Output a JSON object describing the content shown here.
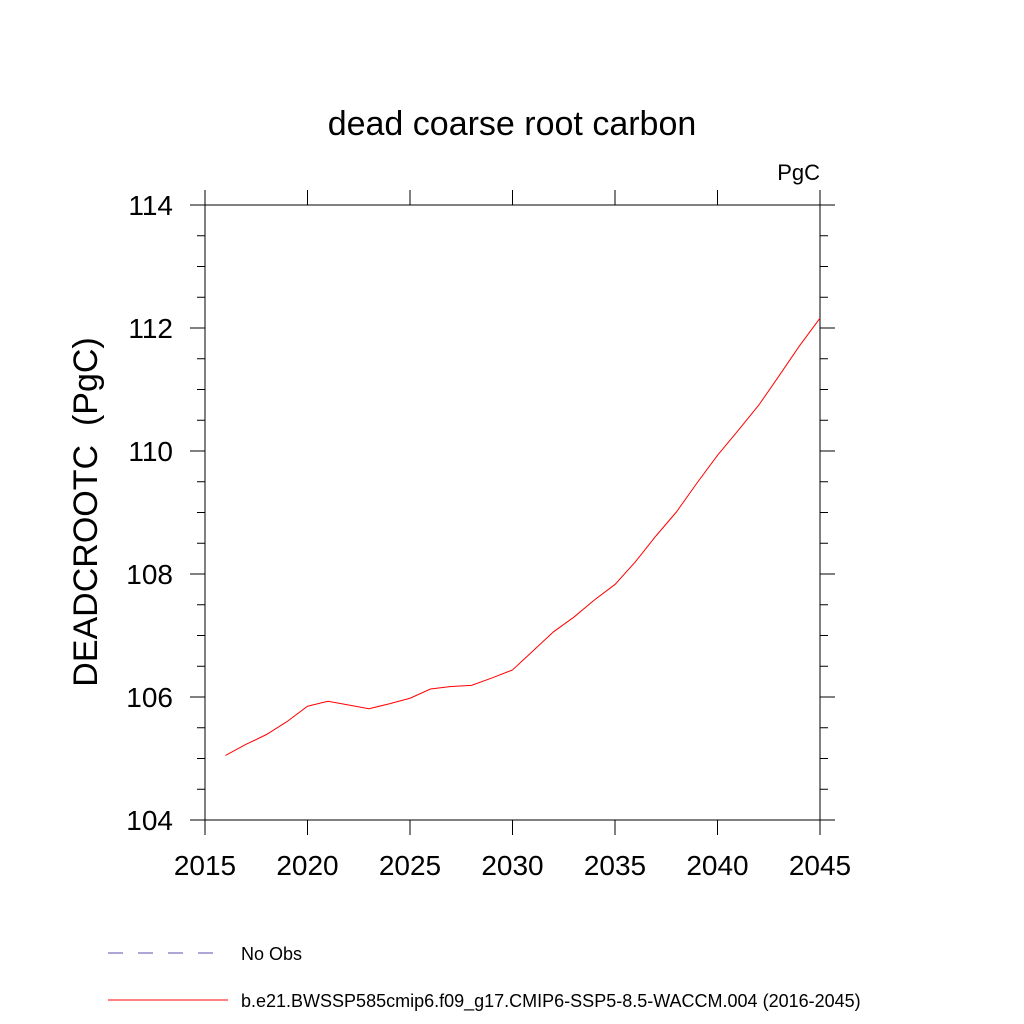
{
  "chart_data": {
    "type": "line",
    "title": "dead coarse root carbon",
    "units_label": "PgC",
    "xlabel": "",
    "ylabel": "DEADCROOTC  (PgC)",
    "xlim": [
      2015,
      2045
    ],
    "ylim": [
      104,
      114
    ],
    "xticks": [
      2015,
      2020,
      2025,
      2030,
      2035,
      2040,
      2045
    ],
    "yticks": [
      104,
      106,
      108,
      110,
      112,
      114
    ],
    "series": [
      {
        "name": "b.e21.BWSSP585cmip6.f09_g17.CMIP6-SSP5-8.5-WACCM.004 (2016-2045)",
        "color": "#ff0000",
        "style": "solid",
        "x": [
          2016,
          2017,
          2018,
          2019,
          2020,
          2021,
          2022,
          2023,
          2024,
          2025,
          2026,
          2027,
          2028,
          2029,
          2030,
          2031,
          2032,
          2033,
          2034,
          2035,
          2036,
          2037,
          2038,
          2039,
          2040,
          2041,
          2042,
          2043,
          2044,
          2045
        ],
        "values": [
          105.05,
          105.23,
          105.39,
          105.6,
          105.85,
          105.93,
          105.87,
          105.81,
          105.89,
          105.98,
          106.13,
          106.17,
          106.19,
          106.31,
          106.44,
          106.75,
          107.06,
          107.3,
          107.58,
          107.83,
          108.2,
          108.62,
          109.01,
          109.48,
          109.93,
          110.33,
          110.74,
          111.22,
          111.71,
          112.16
        ]
      }
    ],
    "legend": [
      {
        "label": "No Obs",
        "color": "#5a4fa8",
        "style": "dashed"
      },
      {
        "label": "b.e21.BWSSP585cmip6.f09_g17.CMIP6-SSP5-8.5-WACCM.004 (2016-2045)",
        "color": "#ff0000",
        "style": "solid"
      }
    ],
    "legend_position": "bottom-left",
    "grid": false
  }
}
